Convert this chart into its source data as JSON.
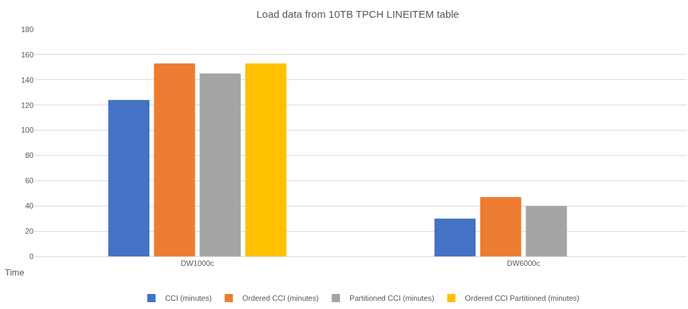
{
  "chart_data": {
    "type": "bar",
    "title": "Load data from 10TB TPCH LINEITEM table",
    "ylabel": "Time",
    "categories": [
      "DW1000c",
      "DW6000c"
    ],
    "series": [
      {
        "name": "CCI (minutes)",
        "color": "#4472c4",
        "values": [
          124,
          30
        ]
      },
      {
        "name": "Ordered CCI (minutes)",
        "color": "#ed7d31",
        "values": [
          153,
          47
        ]
      },
      {
        "name": "Partitioned CCI (minutes)",
        "color": "#a5a5a5",
        "values": [
          145,
          40
        ]
      },
      {
        "name": "Ordered CCI Partitioned (minutes)",
        "color": "#ffc000",
        "values": [
          153,
          null
        ]
      }
    ],
    "ylim": [
      0,
      180
    ],
    "yticks": [
      0,
      20,
      40,
      60,
      80,
      100,
      120,
      140,
      160,
      180
    ],
    "grid": "y",
    "legend": "bottom"
  }
}
